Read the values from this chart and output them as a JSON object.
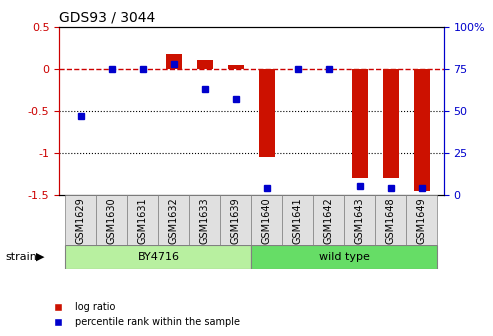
{
  "title": "GDS93 / 3044",
  "samples": [
    "GSM1629",
    "GSM1630",
    "GSM1631",
    "GSM1632",
    "GSM1633",
    "GSM1639",
    "GSM1640",
    "GSM1641",
    "GSM1642",
    "GSM1643",
    "GSM1648",
    "GSM1649"
  ],
  "log_ratio": [
    0.0,
    0.0,
    0.0,
    0.18,
    0.1,
    0.05,
    -1.05,
    0.0,
    0.0,
    -1.3,
    -1.3,
    -1.45
  ],
  "percentile_rank": [
    47,
    75,
    75,
    78,
    63,
    57,
    4,
    75,
    75,
    5,
    4,
    4
  ],
  "strain_groups": [
    {
      "label": "BY4716",
      "start": 0,
      "end": 6,
      "color": "#b8f0a0"
    },
    {
      "label": "wild type",
      "start": 6,
      "end": 12,
      "color": "#66dd66"
    }
  ],
  "ylim_left": [
    -1.5,
    0.5
  ],
  "ylim_right": [
    0,
    100
  ],
  "hline_color": "#cc0000",
  "bar_color": "#cc1100",
  "dot_color": "#0000cc",
  "dotted_line_color": "#000000",
  "axis_left_color": "#cc0000",
  "axis_right_color": "#0000cc",
  "strain_label": "strain",
  "legend_log": "log ratio",
  "legend_pct": "percentile rank within the sample",
  "left_ticks": [
    0.5,
    0,
    -0.5,
    -1.0,
    -1.5
  ],
  "left_tick_labels": [
    "0.5",
    "0",
    "-0.5",
    "-1",
    "-1.5"
  ],
  "right_ticks": [
    0,
    25,
    50,
    75,
    100
  ],
  "right_tick_labels": [
    "0",
    "25",
    "50",
    "75",
    "100%"
  ],
  "dotted_vals": [
    -0.5,
    -1.0
  ],
  "label_bg_color": "#e0e0e0",
  "label_edge_color": "gray"
}
